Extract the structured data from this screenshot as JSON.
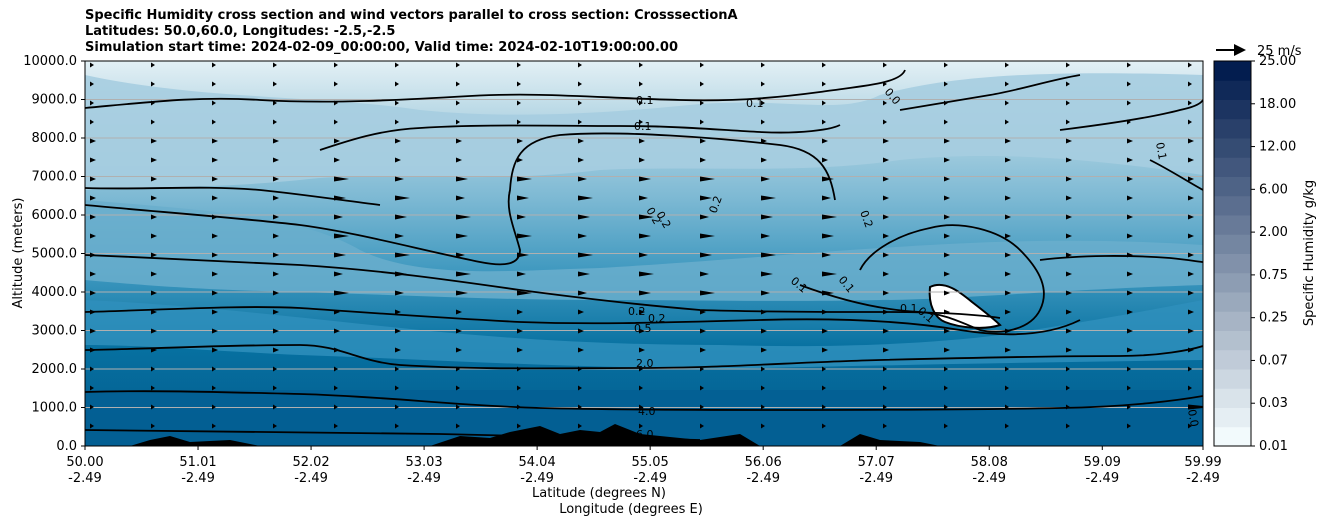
{
  "chart_data": {
    "type": "contourf",
    "title_lines": [
      "Specific Humidity cross section and wind vectors parallel to cross section: CrosssectionA",
      "Latitudes: 50.0,60.0, Longitudes: -2.5,-2.5",
      "Simulation start time: 2024-02-09_00:00:00, Valid time: 2024-02-10T19:00:00.00"
    ],
    "ylabel": "Altitude (meters)",
    "xlabel_lines": [
      "Latitude (degrees N)",
      "Longitude (degrees E)"
    ],
    "ylim": [
      0,
      10000
    ],
    "yticks": [
      "0.0",
      "1000.0",
      "2000.0",
      "3000.0",
      "4000.0",
      "5000.0",
      "6000.0",
      "7000.0",
      "8000.0",
      "9000.0",
      "10000.0"
    ],
    "xticks_lat": [
      "50.00",
      "51.01",
      "52.02",
      "53.03",
      "54.04",
      "55.05",
      "56.06",
      "57.07",
      "58.08",
      "59.09",
      "59.99"
    ],
    "xticks_lon": [
      "-2.49",
      "-2.49",
      "-2.49",
      "-2.49",
      "-2.49",
      "-2.49",
      "-2.49",
      "-2.49",
      "-2.49",
      "-2.49",
      "-2.49"
    ],
    "colorbar": {
      "label": "Specific Humidity g/kg",
      "tick_labels": [
        "0.01",
        "0.03",
        "0.07",
        "0.25",
        "0.75",
        "2.00",
        "6.00",
        "12.00",
        "18.00",
        "25.00"
      ],
      "levels": 20
    },
    "quiver_key": "25 m/s",
    "contour_labels": [
      "0.1",
      "0.1",
      "0.1",
      "0.0",
      "0.1",
      "0.2",
      "0.2",
      "0.2",
      "0.2",
      "0.1",
      "0.1",
      "0.1",
      "0.1",
      "0.2",
      "0.2",
      "0.5",
      "2.0",
      "4.0",
      "6.0",
      "0.0"
    ],
    "grid": true
  }
}
